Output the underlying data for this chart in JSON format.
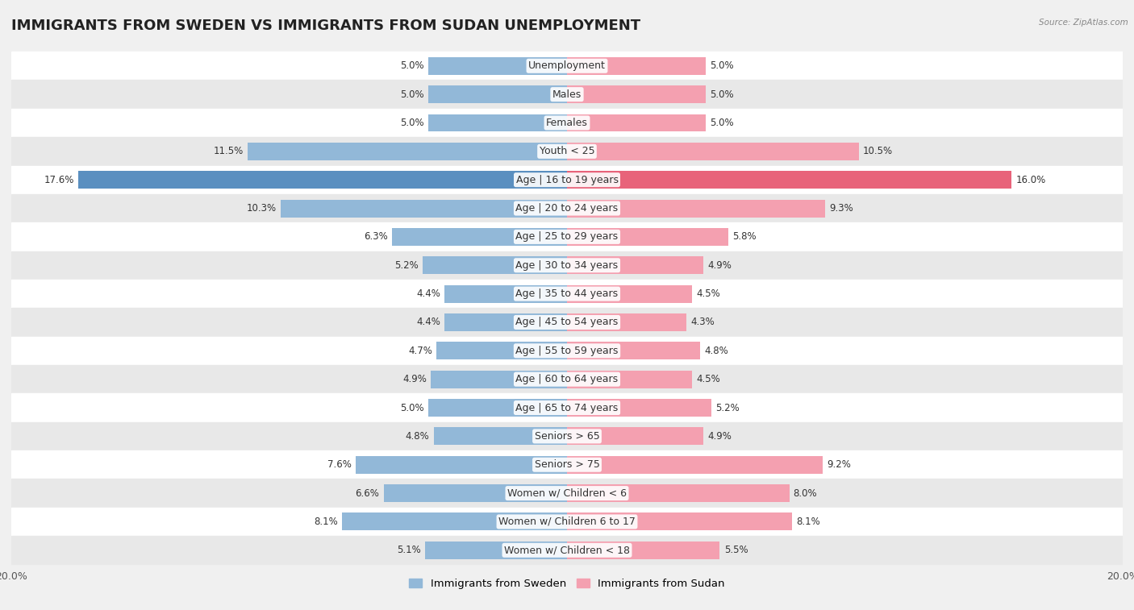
{
  "title": "IMMIGRANTS FROM SWEDEN VS IMMIGRANTS FROM SUDAN UNEMPLOYMENT",
  "source": "Source: ZipAtlas.com",
  "categories": [
    "Unemployment",
    "Males",
    "Females",
    "Youth < 25",
    "Age | 16 to 19 years",
    "Age | 20 to 24 years",
    "Age | 25 to 29 years",
    "Age | 30 to 34 years",
    "Age | 35 to 44 years",
    "Age | 45 to 54 years",
    "Age | 55 to 59 years",
    "Age | 60 to 64 years",
    "Age | 65 to 74 years",
    "Seniors > 65",
    "Seniors > 75",
    "Women w/ Children < 6",
    "Women w/ Children 6 to 17",
    "Women w/ Children < 18"
  ],
  "sweden_values": [
    5.0,
    5.0,
    5.0,
    11.5,
    17.6,
    10.3,
    6.3,
    5.2,
    4.4,
    4.4,
    4.7,
    4.9,
    5.0,
    4.8,
    7.6,
    6.6,
    8.1,
    5.1
  ],
  "sudan_values": [
    5.0,
    5.0,
    5.0,
    10.5,
    16.0,
    9.3,
    5.8,
    4.9,
    4.5,
    4.3,
    4.8,
    4.5,
    5.2,
    4.9,
    9.2,
    8.0,
    8.1,
    5.5
  ],
  "sweden_color": "#92b8d8",
  "sudan_color_normal": "#f4a0b0",
  "sudan_color_highlight": "#e8637a",
  "sweden_color_highlight": "#5a8fc0",
  "sweden_label": "Immigrants from Sweden",
  "sudan_label": "Immigrants from Sudan",
  "max_val": 20.0,
  "bg_color": "#f0f0f0",
  "row_color_even": "#ffffff",
  "row_color_odd": "#e8e8e8",
  "title_fontsize": 13,
  "label_fontsize": 9,
  "value_fontsize": 8.5,
  "bar_height": 0.62
}
